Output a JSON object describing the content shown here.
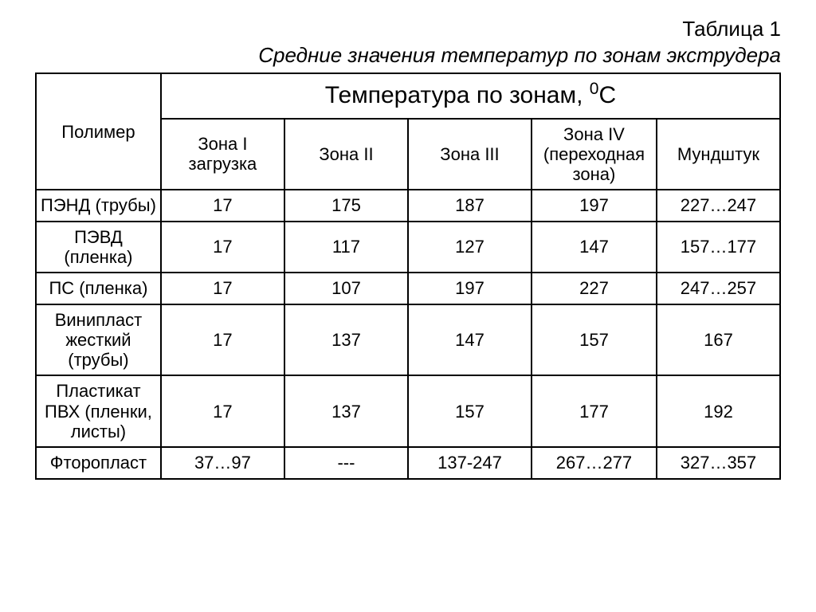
{
  "caption": {
    "number": "Таблица 1",
    "title": "Средние значения температур по зонам экструдера"
  },
  "table": {
    "corner_header": "Полимер",
    "main_header_prefix": "Температура по зонам, ",
    "main_header_super": "0",
    "main_header_suffix": "С",
    "zone_headers": [
      "Зона I загрузка",
      "Зона II",
      "Зона III",
      "Зона IV (переходная зона)",
      "Мундштук"
    ],
    "rows": [
      {
        "label": "ПЭНД (трубы)",
        "cells": [
          "17",
          "175",
          "187",
          "197",
          "227…247"
        ]
      },
      {
        "label": "ПЭВД (пленка)",
        "cells": [
          "17",
          "117",
          "127",
          "147",
          "157…177"
        ]
      },
      {
        "label": "ПС (пленка)",
        "cells": [
          "17",
          "107",
          "197",
          "227",
          "247…257"
        ]
      },
      {
        "label": "Винипласт жесткий (трубы)",
        "cells": [
          "17",
          "137",
          "147",
          "157",
          "167"
        ]
      },
      {
        "label": "Пластикат ПВХ (пленки, листы)",
        "cells": [
          "17",
          "137",
          "157",
          "177",
          "192"
        ]
      },
      {
        "label": "Фторопласт",
        "cells": [
          "37…97",
          "---",
          "137-247",
          "267…277",
          "327…357"
        ]
      }
    ]
  },
  "style": {
    "border_color": "#000000",
    "background_color": "#ffffff",
    "text_color": "#000000",
    "caption_fontsize_pt": 20,
    "main_header_fontsize_pt": 22,
    "cell_fontsize_pt": 16,
    "font_family": "Arial"
  }
}
